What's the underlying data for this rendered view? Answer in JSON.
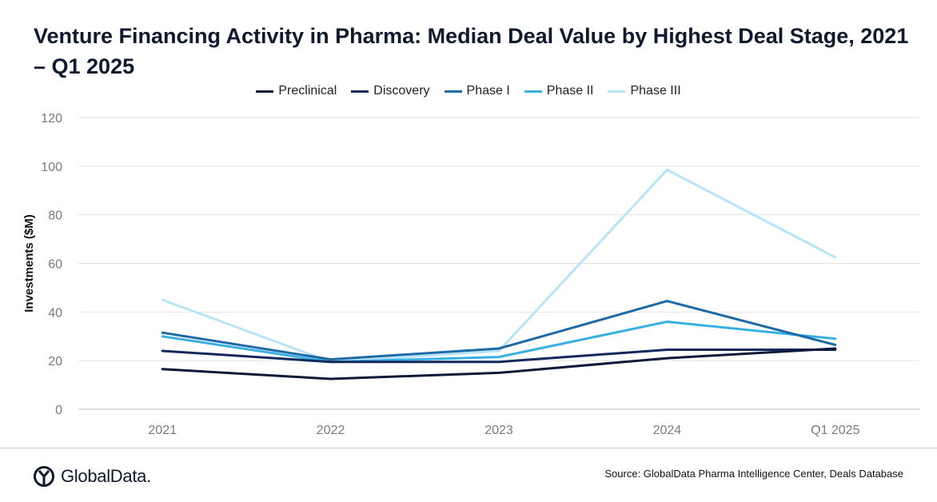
{
  "title": "Venture Financing Activity in Pharma: Median Deal Value by Highest Deal Stage, 2021 – Q1 2025",
  "source": "Source: GlobalData Pharma Intelligence Center, Deals Database",
  "logo": {
    "text": "GlobalData."
  },
  "chart_data": {
    "type": "line",
    "title": "Venture Financing Activity in Pharma: Median Deal Value by Highest Deal Stage, 2021 – Q1 2025",
    "xlabel": "",
    "ylabel": "Investments ($M)",
    "ylim": [
      0,
      120
    ],
    "yticks": [
      0,
      20,
      40,
      60,
      80,
      100,
      120
    ],
    "categories": [
      "2021",
      "2022",
      "2023",
      "2024",
      "Q1 2025"
    ],
    "grid": "horizontal",
    "legend_position": "top-center",
    "series": [
      {
        "name": "Preclinical",
        "color": "#0b1a3a",
        "values": [
          16.5,
          12.5,
          15,
          21,
          25
        ]
      },
      {
        "name": "Discovery",
        "color": "#13285c",
        "values": [
          24,
          19.5,
          19.5,
          24.5,
          24.5
        ]
      },
      {
        "name": "Phase I",
        "color": "#1d6aa6",
        "values": [
          31.5,
          20.5,
          25,
          44.5,
          26.5
        ]
      },
      {
        "name": "Phase II",
        "color": "#3ab0e2",
        "values": [
          30,
          19.5,
          21.5,
          36,
          29
        ]
      },
      {
        "name": "Phase III",
        "color": "#b8e4f7",
        "values": [
          45,
          19.5,
          24,
          98.5,
          62.5
        ]
      }
    ]
  }
}
